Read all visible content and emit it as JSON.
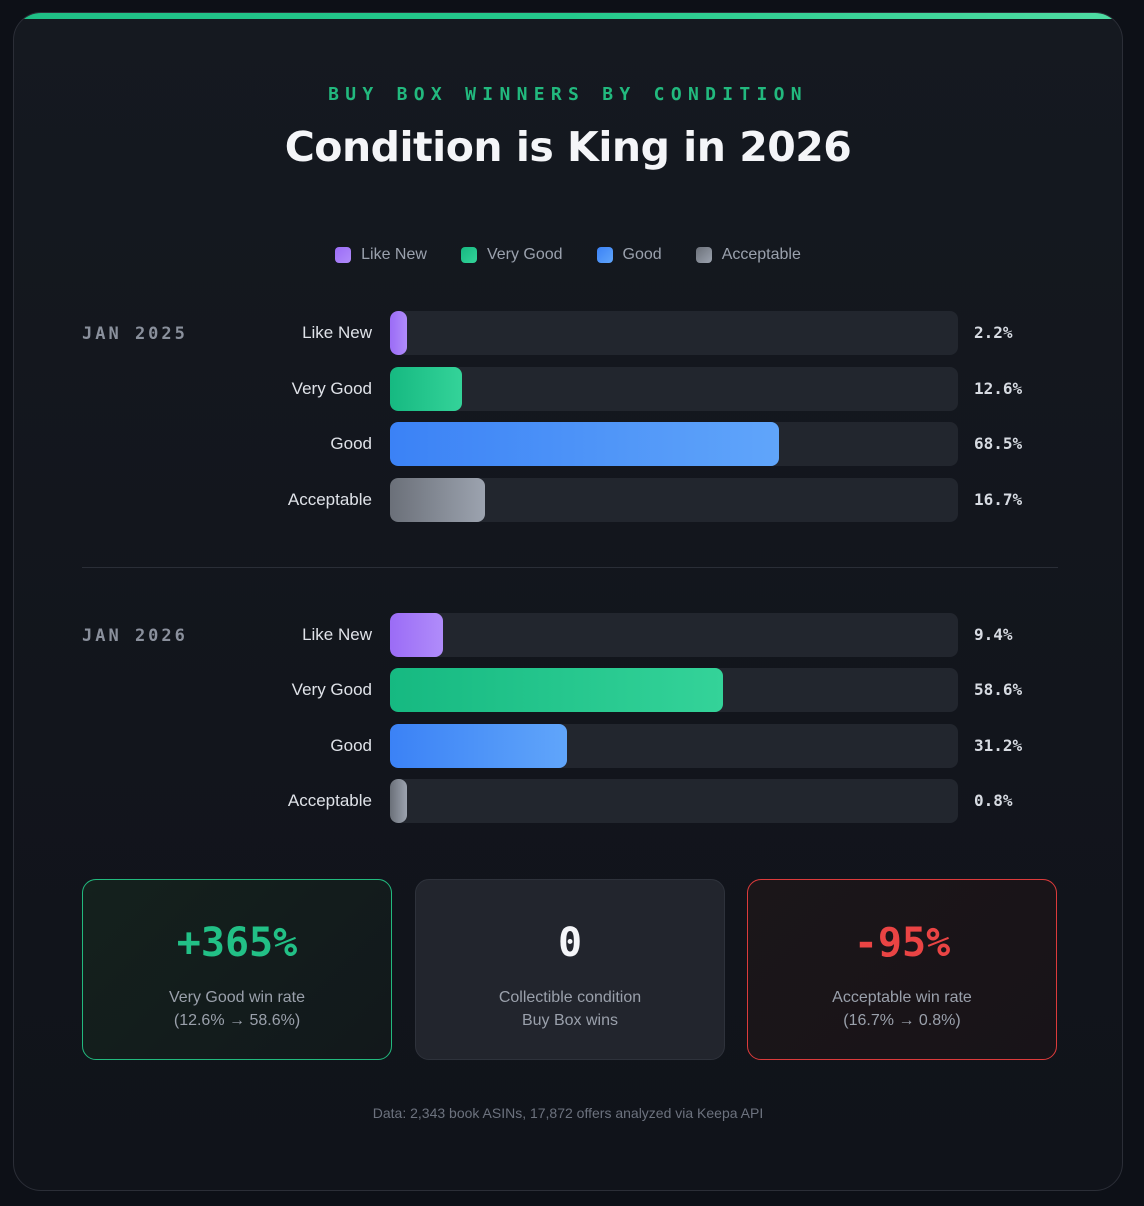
{
  "header": {
    "eyebrow": "BUY BOX WINNERS BY CONDITION",
    "title": "Condition is King in 2026"
  },
  "colors": {
    "like_new": [
      "#9b6cf6",
      "#b08cfa"
    ],
    "very_good": [
      "#16b981",
      "#34d399"
    ],
    "good": [
      "#3b82f6",
      "#60a5fa"
    ],
    "acceptable": [
      "#6b7079",
      "#9ca3af"
    ],
    "accent": "#22b97e",
    "negative": "#ea4444"
  },
  "chart_data": {
    "type": "bar",
    "orientation": "horizontal",
    "title": "Condition is King in 2026",
    "subtitle": "BUY BOX WINNERS BY CONDITION",
    "categories": [
      "Like New",
      "Very Good",
      "Good",
      "Acceptable"
    ],
    "legend": [
      {
        "key": "like_new",
        "label": "Like New"
      },
      {
        "key": "very_good",
        "label": "Very Good"
      },
      {
        "key": "good",
        "label": "Good"
      },
      {
        "key": "acceptable",
        "label": "Acceptable"
      }
    ],
    "legend_position": "top-center",
    "xlim": [
      0,
      100
    ],
    "unit": "%",
    "groups": [
      {
        "label": "JAN 2025",
        "rows": [
          {
            "key": "like_new",
            "label": "Like New",
            "value": 2.2,
            "display": "2.2%"
          },
          {
            "key": "very_good",
            "label": "Very Good",
            "value": 12.6,
            "display": "12.6%"
          },
          {
            "key": "good",
            "label": "Good",
            "value": 68.5,
            "display": "68.5%"
          },
          {
            "key": "acceptable",
            "label": "Acceptable",
            "value": 16.7,
            "display": "16.7%"
          }
        ]
      },
      {
        "label": "JAN 2026",
        "rows": [
          {
            "key": "like_new",
            "label": "Like New",
            "value": 9.4,
            "display": "9.4%"
          },
          {
            "key": "very_good",
            "label": "Very Good",
            "value": 58.6,
            "display": "58.6%"
          },
          {
            "key": "good",
            "label": "Good",
            "value": 31.2,
            "display": "31.2%"
          },
          {
            "key": "acceptable",
            "label": "Acceptable",
            "value": 0.8,
            "display": "0.8%"
          }
        ]
      }
    ]
  },
  "stats": [
    {
      "value": "+365%",
      "line1": "Very Good win rate",
      "line2": "(12.6% → 58.6%)"
    },
    {
      "value": "0",
      "line1": "Collectible condition",
      "line2": "Buy Box wins"
    },
    {
      "value": "-95%",
      "line1": "Acceptable win rate",
      "line2": "(16.7% → 0.8%)"
    }
  ],
  "footnote": "Data: 2,343 book ASINs, 17,872 offers analyzed via Keepa API"
}
